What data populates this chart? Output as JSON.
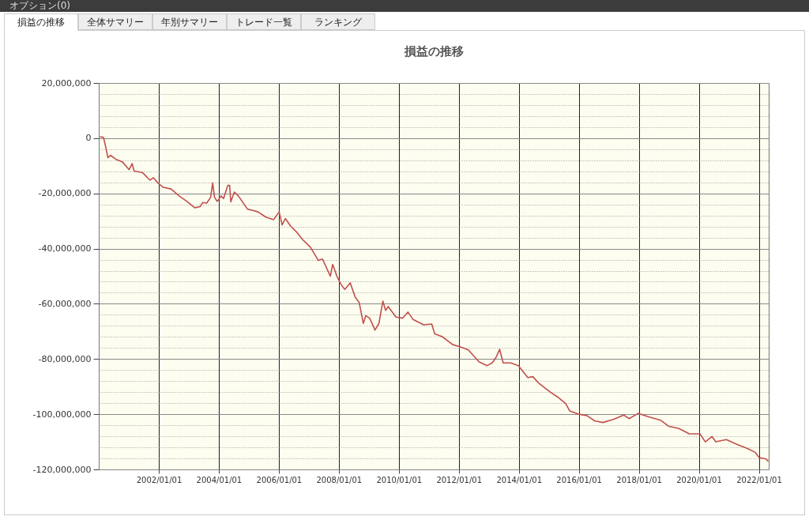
{
  "chart_data": {
    "type": "line",
    "title": "損益の推移",
    "annotations": [
      "オプション(0)",
      "損益の推移",
      "全体サマリー",
      "年別サマリー",
      "トレード一覧",
      "ランキング"
    ],
    "x": [
      "2000-01-15",
      "2000-02-28",
      "2000-03-20",
      "2000-04-22",
      "2000-05-22",
      "2000-07-26",
      "2000-10-15",
      "2001-01-05",
      "2001-02-10",
      "2001-03-07",
      "2001-06-14",
      "2001-09-16",
      "2001-10-27",
      "2001-12-20",
      "2002-02-24",
      "2002-05-30",
      "2002-09-05",
      "2002-12-10",
      "2003-03-14",
      "2003-05-18",
      "2003-06-21",
      "2003-08-08",
      "2003-09-24",
      "2003-10-19",
      "2003-11-10",
      "2003-12-13",
      "2004-01-30",
      "2004-02-28",
      "2004-04-20",
      "2004-05-12",
      "2004-05-26",
      "2004-07-09",
      "2004-08-26",
      "2004-12-16",
      "2005-02-02",
      "2005-04-23",
      "2005-07-27",
      "2005-10-30",
      "2006-01-05",
      "2006-02-10",
      "2006-03-22",
      "2006-05-26",
      "2006-08-15",
      "2006-10-16",
      "2007-01-22",
      "2007-04-27",
      "2007-06-17",
      "2007-09-20",
      "2007-10-19",
      "2007-12-09",
      "2008-01-26",
      "2008-03-14",
      "2008-05-19",
      "2008-07-19",
      "2008-09-05",
      "2008-10-26",
      "2008-11-24",
      "2009-01-11",
      "2009-03-17",
      "2009-05-04",
      "2009-06-21",
      "2009-07-24",
      "2009-08-25",
      "2009-11-28",
      "2010-02-17",
      "2010-04-22",
      "2010-06-24",
      "2010-10-30",
      "2011-02-06",
      "2011-03-14",
      "2011-06-14",
      "2011-10-19",
      "2012-01-08",
      "2012-04-27",
      "2012-09-02",
      "2012-12-10",
      "2013-02-10",
      "2013-03-28",
      "2013-05-12",
      "2013-06-25",
      "2013-09-24",
      "2013-12-27",
      "2014-04-20",
      "2014-06-21",
      "2014-08-26",
      "2015-01-15",
      "2015-04-20",
      "2015-07-27",
      "2015-09-12",
      "2016-01-05",
      "2016-04-08",
      "2016-07-12",
      "2016-10-19",
      "2017-02-24",
      "2017-07-01",
      "2017-09-05",
      "2017-12-24",
      "2018-04-16",
      "2018-09-24",
      "2018-12-28",
      "2019-05-04",
      "2019-09-08",
      "2020-01-15",
      "2020-03-20",
      "2020-06-10",
      "2020-07-26",
      "2020-12-02",
      "2021-04-08",
      "2021-08-15",
      "2021-11-17",
      "2022-01-05",
      "2022-03-28",
      "2022-04-26"
    ],
    "series": [
      {
        "color": "#c0504d",
        "values": [
          500000,
          300000,
          -2400000,
          -7100000,
          -6200000,
          -7600000,
          -8600000,
          -11400000,
          -9200000,
          -11900000,
          -12400000,
          -15200000,
          -14300000,
          -16200000,
          -17800000,
          -18400000,
          -20900000,
          -22900000,
          -25200000,
          -24800000,
          -23300000,
          -23500000,
          -21400000,
          -16200000,
          -21400000,
          -22900000,
          -20900000,
          -21900000,
          -17100000,
          -17100000,
          -23100000,
          -19500000,
          -20900000,
          -25700000,
          -26000000,
          -26700000,
          -28600000,
          -29500000,
          -26700000,
          -31400000,
          -29100000,
          -31900000,
          -34300000,
          -36700000,
          -39500000,
          -44300000,
          -43800000,
          -50000000,
          -45700000,
          -50000000,
          -52900000,
          -54800000,
          -52400000,
          -57600000,
          -59500000,
          -67100000,
          -64300000,
          -65200000,
          -69500000,
          -67100000,
          -59000000,
          -62400000,
          -61000000,
          -64800000,
          -65200000,
          -63000000,
          -65700000,
          -67600000,
          -67300000,
          -70900000,
          -71900000,
          -74800000,
          -75500000,
          -76700000,
          -81000000,
          -82400000,
          -81400000,
          -79500000,
          -76500000,
          -81400000,
          -81400000,
          -82400000,
          -86700000,
          -86400000,
          -88600000,
          -91900000,
          -93800000,
          -96200000,
          -98800000,
          -100000000,
          -100500000,
          -102400000,
          -103000000,
          -101900000,
          -100300000,
          -101600000,
          -99700000,
          -100800000,
          -102200000,
          -104300000,
          -105200000,
          -107100000,
          -107100000,
          -110000000,
          -108100000,
          -110000000,
          -109200000,
          -110900000,
          -112400000,
          -113800000,
          -115700000,
          -116200000,
          -117100000
        ]
      }
    ],
    "xlim": [
      "2000-01-01",
      "2022-05-01"
    ],
    "xticks": [
      {
        "value": "2002-01-01",
        "label": "2002/01/01"
      },
      {
        "value": "2004-01-01",
        "label": "2004/01/01"
      },
      {
        "value": "2006-01-01",
        "label": "2006/01/01"
      },
      {
        "value": "2008-01-01",
        "label": "2008/01/01"
      },
      {
        "value": "2010-01-01",
        "label": "2010/01/01"
      },
      {
        "value": "2012-01-01",
        "label": "2012/01/01"
      },
      {
        "value": "2014-01-01",
        "label": "2014/01/01"
      },
      {
        "value": "2016-01-01",
        "label": "2016/01/01"
      },
      {
        "value": "2018-01-01",
        "label": "2018/01/01"
      },
      {
        "value": "2020-01-01",
        "label": "2020/01/01"
      },
      {
        "value": "2022-01-01",
        "label": "2022/01/01"
      }
    ],
    "ylim": [
      -120000000,
      20000000
    ],
    "yticks": [
      {
        "value": -120000000,
        "label": "-120,000,000"
      },
      {
        "value": -116000000,
        "label": null
      },
      {
        "value": -112000000,
        "label": null
      },
      {
        "value": -108000000,
        "label": null
      },
      {
        "value": -104000000,
        "label": null
      },
      {
        "value": -100000000,
        "label": "-100,000,000"
      },
      {
        "value": -96000000,
        "label": null
      },
      {
        "value": -92000000,
        "label": null
      },
      {
        "value": -88000000,
        "label": null
      },
      {
        "value": -84000000,
        "label": null
      },
      {
        "value": -80000000,
        "label": "-80,000,000"
      },
      {
        "value": -76000000,
        "label": null
      },
      {
        "value": -72000000,
        "label": null
      },
      {
        "value": -68000000,
        "label": null
      },
      {
        "value": -64000000,
        "label": null
      },
      {
        "value": -60000000,
        "label": "-60,000,000"
      },
      {
        "value": -56000000,
        "label": null
      },
      {
        "value": -52000000,
        "label": null
      },
      {
        "value": -48000000,
        "label": null
      },
      {
        "value": -44000000,
        "label": null
      },
      {
        "value": -40000000,
        "label": "-40,000,000"
      },
      {
        "value": -36000000,
        "label": null
      },
      {
        "value": -32000000,
        "label": null
      },
      {
        "value": -28000000,
        "label": null
      },
      {
        "value": -24000000,
        "label": null
      },
      {
        "value": -20000000,
        "label": "-20,000,000"
      },
      {
        "value": -16000000,
        "label": null
      },
      {
        "value": -12000000,
        "label": null
      },
      {
        "value": -8000000,
        "label": null
      },
      {
        "value": -4000000,
        "label": null
      },
      {
        "value": 0,
        "label": "0"
      },
      {
        "value": 4000000,
        "label": null
      },
      {
        "value": 8000000,
        "label": null
      },
      {
        "value": 12000000,
        "label": null
      },
      {
        "value": 16000000,
        "label": null
      },
      {
        "value": 20000000,
        "label": "20,000,000"
      }
    ],
    "grid": true,
    "line_style": "solid"
  }
}
